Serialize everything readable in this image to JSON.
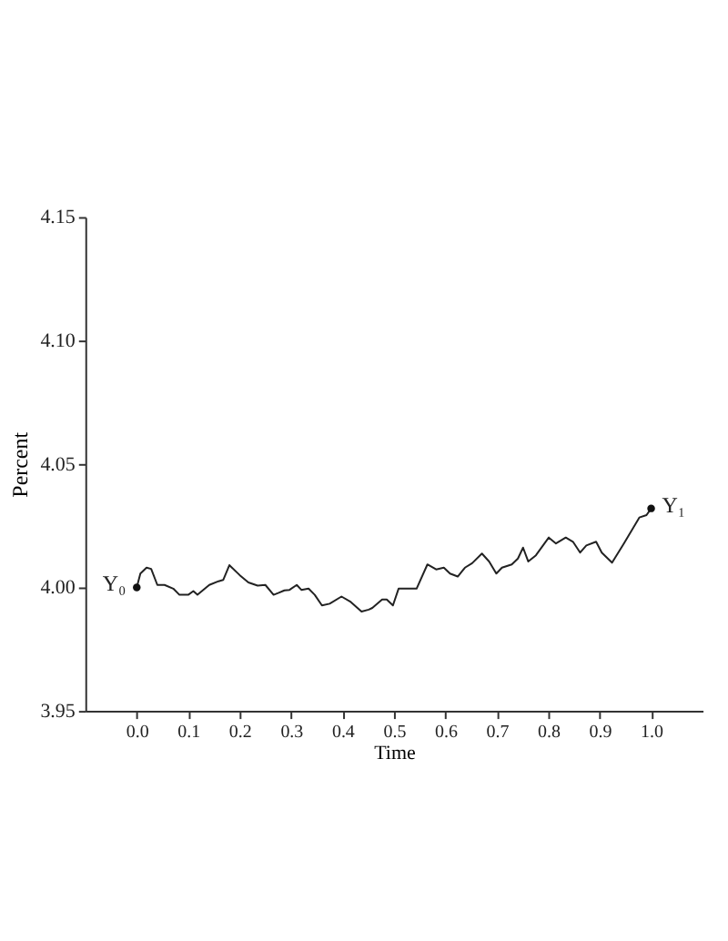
{
  "chart_data": {
    "type": "line",
    "xlabel": "Time",
    "ylabel": "Percent",
    "xlim": [
      -0.1,
      1.1
    ],
    "xticks": [
      {
        "value": 0,
        "label": "0.0"
      },
      0.1,
      0.2,
      0.3,
      0.4,
      0.5,
      0.6,
      0.7,
      0.8,
      0.9,
      {
        "value": 1,
        "label": "1.0"
      }
    ],
    "ylim": [
      3.95,
      4.15
    ],
    "yticks": [
      3.95,
      {
        "value": 4.0,
        "label": "4.00"
      },
      4.05,
      {
        "value": 4.1,
        "label": "4.10"
      },
      4.15
    ],
    "grid": false,
    "series": [
      {
        "color": "#222222",
        "line_style": "solid",
        "marker": "none",
        "x": [
          0,
          0.007,
          0.019,
          0.028,
          0.04,
          0.054,
          0.071,
          0.083,
          0.1,
          0.11,
          0.118,
          0.141,
          0.159,
          0.168,
          0.18,
          0.2,
          0.217,
          0.235,
          0.25,
          0.266,
          0.276,
          0.287,
          0.297,
          0.311,
          0.32,
          0.334,
          0.346,
          0.36,
          0.375,
          0.398,
          0.416,
          0.437,
          0.451,
          0.458,
          0.477,
          0.486,
          0.498,
          0.509,
          0.533,
          0.544,
          0.565,
          0.582,
          0.597,
          0.609,
          0.624,
          0.638,
          0.652,
          0.671,
          0.685,
          0.699,
          0.71,
          0.729,
          0.741,
          0.751,
          0.761,
          0.776,
          0.801,
          0.815,
          0.834,
          0.848,
          0.862,
          0.874,
          0.893,
          0.904,
          0.924,
          0.947,
          0.977,
          0.991,
          1.0
        ],
        "values": [
          4.0,
          4.0056,
          4.008,
          4.0075,
          4.001,
          4.001,
          3.9995,
          3.997,
          3.997,
          3.9985,
          3.997,
          4.001,
          4.0025,
          4.003,
          4.009,
          4.005,
          4.002,
          4.0007,
          4.001,
          3.997,
          3.9978,
          3.9988,
          3.999,
          4.001,
          3.999,
          3.9995,
          3.997,
          3.9927,
          3.9934,
          3.9963,
          3.9941,
          3.9902,
          3.991,
          3.9917,
          3.9951,
          3.9951,
          3.9927,
          3.9995,
          3.9995,
          3.9995,
          4.0093,
          4.0073,
          4.008,
          4.0056,
          4.0044,
          4.008,
          4.0098,
          4.0137,
          4.0105,
          4.0056,
          4.008,
          4.0093,
          4.0117,
          4.0161,
          4.0105,
          4.013,
          4.0202,
          4.0178,
          4.0202,
          4.0185,
          4.0141,
          4.017,
          4.0185,
          4.0141,
          4.01,
          4.0178,
          4.0283,
          4.0293,
          4.032
        ]
      },
      {
        "type": "scatter",
        "color": "#111111",
        "marker": "circle",
        "x": [
          0,
          1.0
        ],
        "values": [
          4.0,
          4.032
        ]
      }
    ],
    "annotations": [
      {
        "text": "Y₀",
        "x": 0,
        "y": 4.0
      },
      {
        "text": "Y₁",
        "x": 1.0,
        "y": 4.032
      }
    ]
  }
}
